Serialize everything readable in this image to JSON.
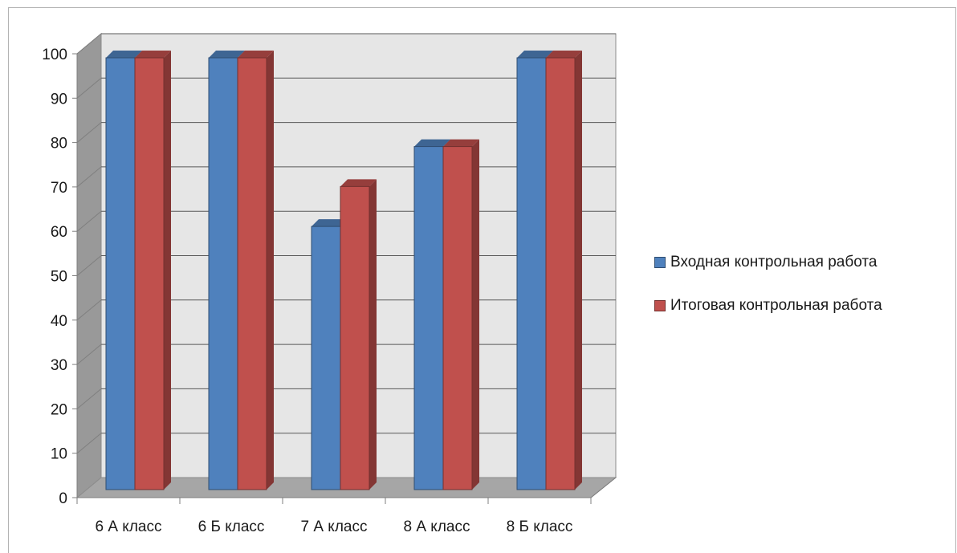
{
  "chart_data": {
    "type": "bar",
    "title": "",
    "xlabel": "",
    "ylabel": "",
    "categories": [
      "6 А класс",
      "6 Б класс",
      "7 А класс",
      "8 А класс",
      "8 Б класс"
    ],
    "series": [
      {
        "name": "Входная контрольная работа",
        "values": [
          100,
          100,
          62,
          80,
          100
        ],
        "color": "#4f81bd"
      },
      {
        "name": "Итоговая контрольная работа",
        "values": [
          100,
          100,
          71,
          80,
          100
        ],
        "color": "#c0504d"
      }
    ],
    "y_ticks": [
      "0",
      "10",
      "20",
      "30",
      "40",
      "50",
      "60",
      "70",
      "80",
      "90",
      "100"
    ],
    "ylim": [
      0,
      100
    ],
    "grid": true,
    "legend_position": "right",
    "style": "3d-clustered-column"
  }
}
